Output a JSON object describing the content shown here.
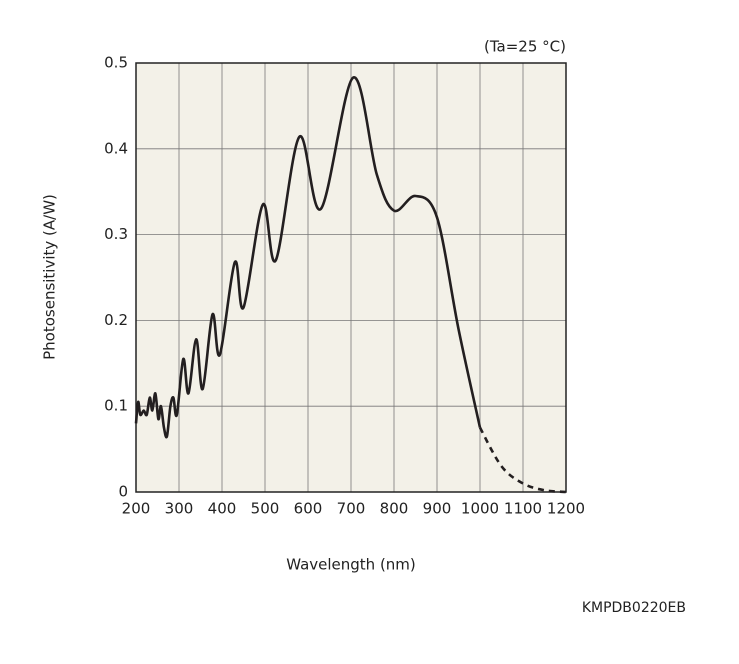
{
  "chart_data": {
    "type": "line",
    "annotation": "(Ta=25 °C)",
    "code": "KMPDB0220EB",
    "x_label": "Wavelength (nm)",
    "y_label": "Photosensitivity (A/W)",
    "xlim": [
      200,
      1200
    ],
    "ylim": [
      0,
      0.5
    ],
    "xticks": [
      200,
      300,
      400,
      500,
      600,
      700,
      800,
      900,
      1000,
      1100,
      1200
    ],
    "yticks": [
      0,
      0.1,
      0.2,
      0.3,
      0.4,
      0.5
    ],
    "grid": true,
    "background": "#f3f1e8",
    "series": [
      {
        "color": "#231f20",
        "dashed": false,
        "x": [
          200,
          205,
          210,
          218,
          225,
          232,
          238,
          245,
          252,
          258,
          265,
          272,
          280,
          287,
          295,
          310,
          322,
          340,
          355,
          378,
          395,
          430,
          450,
          495,
          525,
          580,
          630,
          705,
          760,
          800,
          850,
          900,
          950,
          1000
        ],
        "values": [
          0.08,
          0.105,
          0.09,
          0.095,
          0.09,
          0.11,
          0.095,
          0.115,
          0.085,
          0.1,
          0.075,
          0.065,
          0.1,
          0.11,
          0.09,
          0.155,
          0.115,
          0.178,
          0.12,
          0.207,
          0.16,
          0.268,
          0.215,
          0.335,
          0.27,
          0.414,
          0.33,
          0.483,
          0.37,
          0.328,
          0.345,
          0.32,
          0.19,
          0.075
        ]
      },
      {
        "color": "#231f20",
        "dashed": true,
        "x": [
          1000,
          1050,
          1100,
          1150,
          1200
        ],
        "values": [
          0.075,
          0.03,
          0.01,
          0.002,
          0
        ]
      }
    ]
  }
}
